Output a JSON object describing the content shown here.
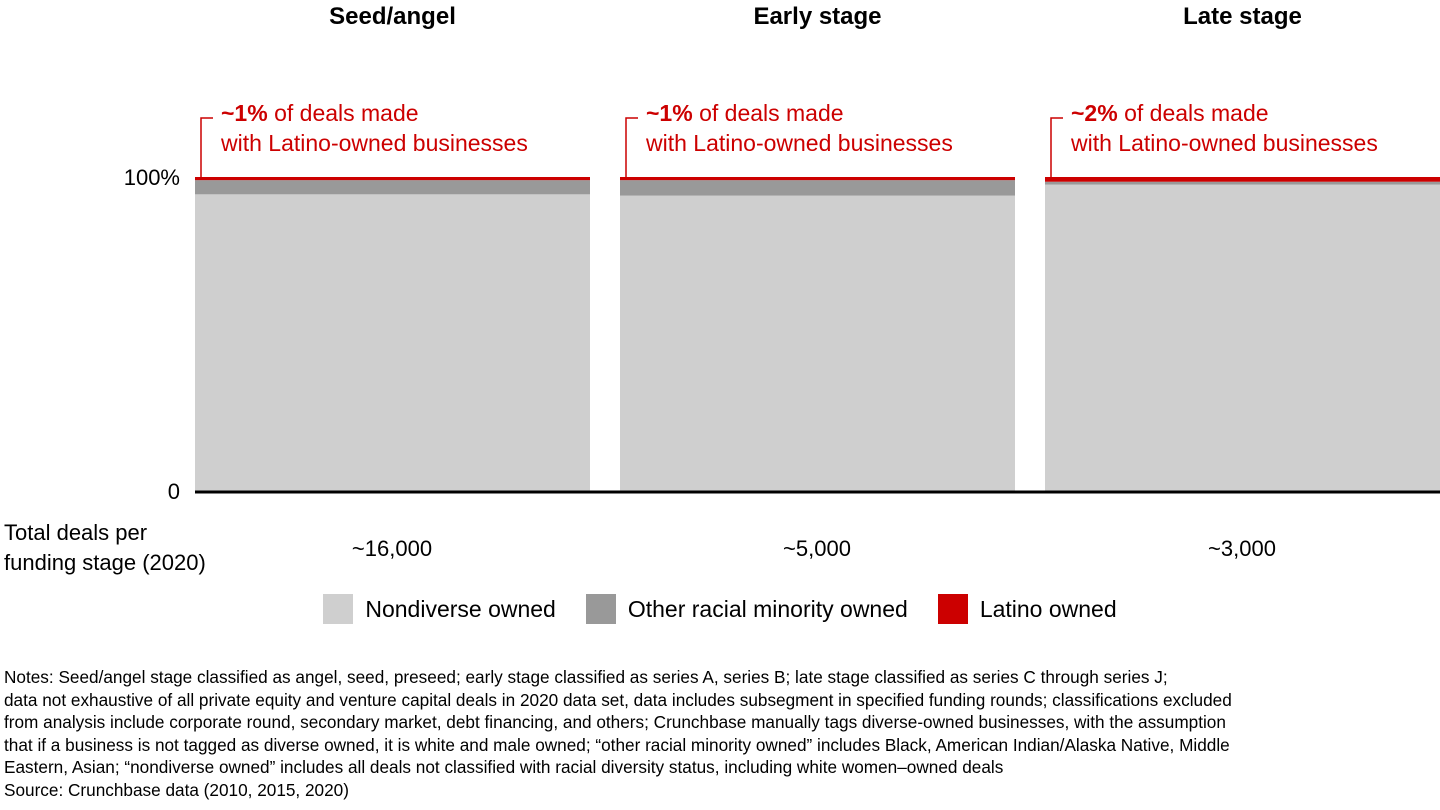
{
  "chart_data": {
    "type": "bar",
    "stacked": true,
    "categories": [
      "Seed/angel",
      "Early stage",
      "Late stage"
    ],
    "y_ticks": [
      "100%",
      "0"
    ],
    "ylim": [
      0,
      100
    ],
    "series": [
      {
        "name": "Nondiverse owned",
        "values": [
          94.5,
          94.1,
          97.6
        ]
      },
      {
        "name": "Other racial minority owned",
        "values": [
          4.5,
          4.9,
          0.9
        ]
      },
      {
        "name": "Latino owned",
        "values": [
          1,
          1,
          1.5
        ]
      }
    ],
    "annotations": [
      {
        "bold": "~1%",
        "line1": " of deals made",
        "line2": "with Latino-owned businesses"
      },
      {
        "bold": "~1%",
        "line1": " of deals made",
        "line2": "with Latino-owned businesses"
      },
      {
        "bold": "~2%",
        "line1": " of deals made",
        "line2": "with Latino-owned businesses"
      }
    ],
    "totals_label": [
      "Total deals per",
      "funding stage (2020)"
    ],
    "totals": [
      "~16,000",
      "~5,000",
      "~3,000"
    ],
    "legend_position": "bottom"
  },
  "colors": {
    "nondiverse": "#cfcfcf",
    "other_minority": "#999999",
    "latino": "#cc0000",
    "axis": "#000000"
  },
  "notes": [
    "Notes: Seed/angel stage classified as angel, seed, preseed; early stage classified as series A, series B; late stage classified as series C through series J;",
    "data not exhaustive of all private equity and venture capital deals in 2020 data set, data includes subsegment in specified funding rounds; classifications excluded",
    "from analysis include corporate round, secondary market, debt financing, and others; Crunchbase manually tags diverse-owned businesses, with the assumption",
    "that if a business is not tagged as diverse owned, it is white and male owned; “other racial minority owned” includes Black, American Indian/Alaska Native, Middle",
    "Eastern, Asian; “nondiverse owned” includes all deals not classified with racial diversity status, including white women–owned deals",
    "Source: Crunchbase data (2010, 2015, 2020)"
  ]
}
